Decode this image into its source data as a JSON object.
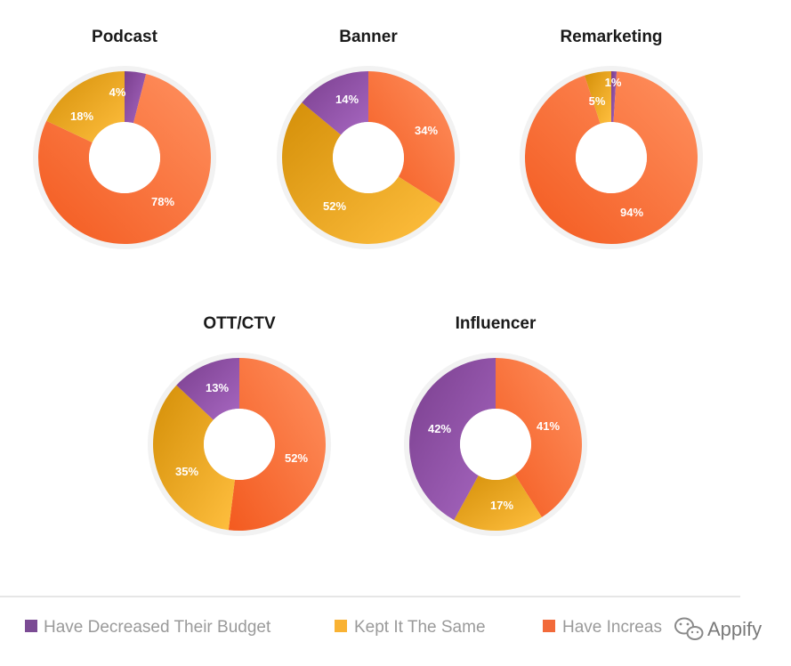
{
  "chart_data": [
    {
      "type": "pie",
      "title": "Podcast",
      "slices": [
        {
          "category": "decreased",
          "value": 4,
          "label": "4%"
        },
        {
          "category": "increased",
          "value": 78,
          "label": "78%"
        },
        {
          "category": "same",
          "value": 18,
          "label": "18%"
        }
      ]
    },
    {
      "type": "pie",
      "title": "Banner",
      "slices": [
        {
          "category": "increased",
          "value": 34,
          "label": "34%"
        },
        {
          "category": "same",
          "value": 52,
          "label": "52%"
        },
        {
          "category": "decreased",
          "value": 14,
          "label": "14%"
        }
      ]
    },
    {
      "type": "pie",
      "title": "Remarketing",
      "slices": [
        {
          "category": "decreased",
          "value": 1,
          "label": "1%"
        },
        {
          "category": "increased",
          "value": 94,
          "label": "94%"
        },
        {
          "category": "same",
          "value": 5,
          "label": "5%"
        }
      ]
    },
    {
      "type": "pie",
      "title": "OTT/CTV",
      "slices": [
        {
          "category": "increased",
          "value": 52,
          "label": "52%"
        },
        {
          "category": "same",
          "value": 35,
          "label": "35%"
        },
        {
          "category": "decreased",
          "value": 13,
          "label": "13%"
        }
      ]
    },
    {
      "type": "pie",
      "title": "Influencer",
      "slices": [
        {
          "category": "increased",
          "value": 41,
          "label": "41%"
        },
        {
          "category": "same",
          "value": 17,
          "label": "17%"
        },
        {
          "category": "decreased",
          "value": 42,
          "label": "42%"
        }
      ]
    }
  ],
  "legend": [
    {
      "key": "decreased",
      "label": "Have Decreased Their Budget"
    },
    {
      "key": "same",
      "label": "Kept It The Same"
    },
    {
      "key": "increased",
      "label": "Have Increas"
    }
  ],
  "colors": {
    "decreased": "#9b59b6",
    "same": "#f9b233",
    "increased": "#ff7a45",
    "ring": "#f2f2f2",
    "divider": "#e6e6e6"
  },
  "watermark": {
    "text": "Appify",
    "icon": "wechat-icon"
  }
}
